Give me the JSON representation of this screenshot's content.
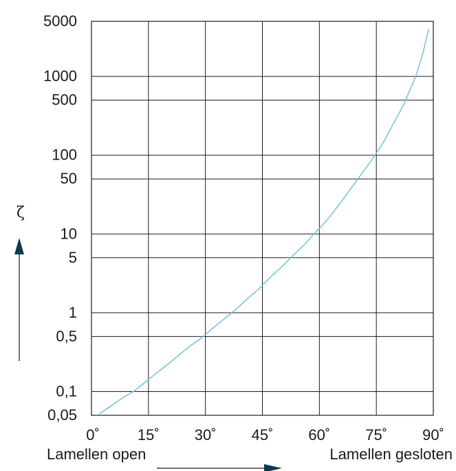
{
  "chart_data": {
    "type": "line",
    "title": "",
    "ylabel": "ζ",
    "x_scale": "linear",
    "y_scale": "log",
    "xlim": [
      0,
      90
    ],
    "ylim": [
      0.05,
      5000
    ],
    "grid": true,
    "x_ticks": [
      {
        "value": 0,
        "label": "0˚"
      },
      {
        "value": 15,
        "label": "15˚"
      },
      {
        "value": 30,
        "label": "30˚"
      },
      {
        "value": 45,
        "label": "45˚"
      },
      {
        "value": 60,
        "label": "60˚"
      },
      {
        "value": 75,
        "label": "75˚"
      },
      {
        "value": 90,
        "label": "90˚"
      }
    ],
    "y_ticks": [
      {
        "value": 0.05,
        "label": "0,05"
      },
      {
        "value": 0.1,
        "label": "0,1"
      },
      {
        "value": 0.5,
        "label": "0,5"
      },
      {
        "value": 1,
        "label": "1"
      },
      {
        "value": 5,
        "label": "5"
      },
      {
        "value": 10,
        "label": "10"
      },
      {
        "value": 50,
        "label": "50"
      },
      {
        "value": 100,
        "label": "100"
      },
      {
        "value": 500,
        "label": "500"
      },
      {
        "value": 1000,
        "label": "1000"
      },
      {
        "value": 5000,
        "label": "5000"
      }
    ],
    "x_label_left": "Lamellen open",
    "x_label_right": "Lamellen gesloten",
    "series": [
      {
        "color": "#7cc2df",
        "x": [
          2,
          5,
          8,
          11,
          14,
          17,
          20,
          23,
          26,
          29,
          32,
          35,
          38,
          41,
          44,
          47,
          50,
          53,
          56,
          59,
          62,
          65,
          68,
          71,
          74,
          77,
          80,
          82,
          84,
          85.5,
          86.5,
          87.3,
          88,
          88.5,
          88.8
        ],
        "y": [
          0.052,
          0.065,
          0.082,
          0.1,
          0.13,
          0.17,
          0.22,
          0.29,
          0.38,
          0.48,
          0.64,
          0.84,
          1.1,
          1.5,
          2.0,
          2.8,
          3.8,
          5.3,
          7.3,
          10.5,
          15,
          23,
          36,
          57,
          90,
          150,
          280,
          420,
          700,
          1050,
          1500,
          2000,
          2800,
          3500,
          4000
        ]
      }
    ]
  }
}
